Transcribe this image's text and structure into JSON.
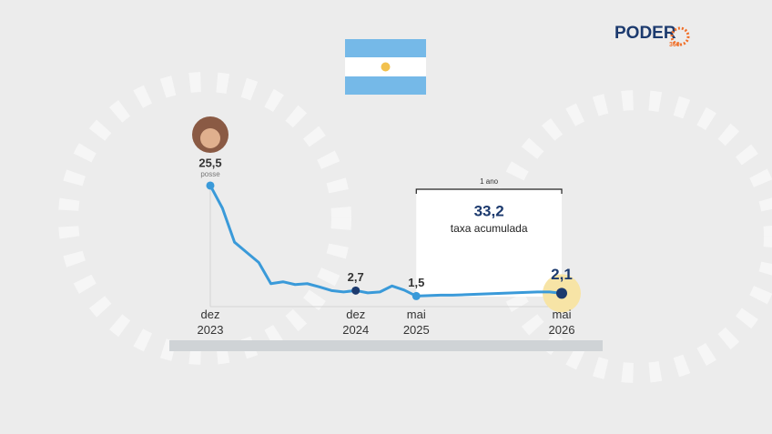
{
  "chart_data": {
    "type": "line",
    "categories": [
      "dez 2023",
      null,
      null,
      null,
      null,
      null,
      null,
      null,
      null,
      null,
      null,
      null,
      "dez 2024",
      null,
      null,
      null,
      null,
      "mai 2025",
      null,
      null,
      null,
      null,
      null,
      null,
      null,
      null,
      null,
      null,
      null,
      "mai 2026"
    ],
    "values": [
      25.5,
      20.6,
      13.2,
      11.0,
      8.8,
      4.2,
      4.6,
      4.0,
      4.2,
      3.5,
      2.7,
      2.4,
      2.7,
      2.2,
      2.4,
      3.7,
      2.8,
      1.5,
      1.6,
      1.7,
      1.7,
      1.8,
      1.9,
      2.0,
      2.1,
      2.2,
      2.3,
      2.4,
      2.4,
      2.1
    ],
    "value_labels": [
      "25,5",
      null,
      null,
      null,
      null,
      null,
      null,
      null,
      null,
      null,
      null,
      null,
      "2,7",
      null,
      null,
      null,
      null,
      "1,5",
      null,
      null,
      null,
      null,
      null,
      null,
      null,
      null,
      null,
      null,
      null,
      "2,1"
    ],
    "color": "#3a9ad9",
    "ylim": [
      0,
      26
    ],
    "annotations": {
      "start_note": "posse",
      "period": "1 ano",
      "accumulated": {
        "value": 33.2,
        "label": "33,2"
      },
      "accumulated_text": "taxa acumulada"
    }
  },
  "logo": {
    "name": "PODER",
    "sub": "360"
  }
}
